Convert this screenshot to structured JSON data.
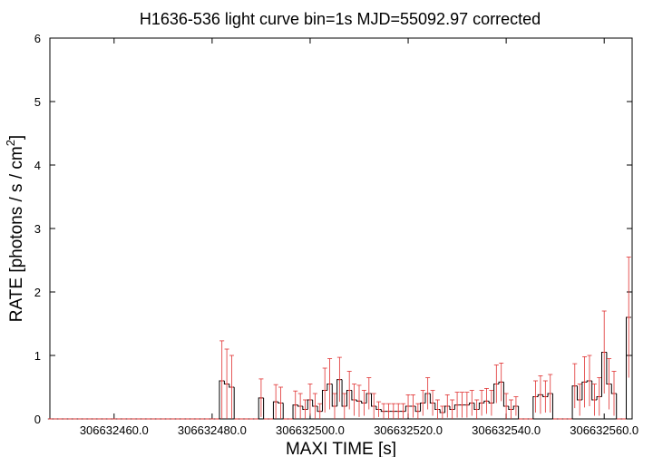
{
  "chart_data": {
    "type": "step-errorbar",
    "title": "H1636-536 light curve bin=1s MJD=55092.97 corrected",
    "x_label": "MAXI TIME [s]",
    "y_label": "RATE [photons / s / cm",
    "y_label_superscript": "2",
    "y_label_end": "]",
    "line_color": "#000000",
    "error_color": "#e03030",
    "xlim": [
      306632446.9,
      306632565.7
    ],
    "ylim": [
      0,
      6
    ],
    "xticks": [
      {
        "value": 306632460,
        "label": "306632460.0"
      },
      {
        "value": 306632480,
        "label": "306632480.0"
      },
      {
        "value": 306632500,
        "label": "306632500.0"
      },
      {
        "value": 306632520,
        "label": "306632520.0"
      },
      {
        "value": 306632540,
        "label": "306632540.0"
      },
      {
        "value": 306632560,
        "label": "306632560.0"
      }
    ],
    "yticks": [
      0,
      1,
      2,
      3,
      4,
      5,
      6
    ],
    "x": [
      306632447,
      306632448,
      306632449,
      306632450,
      306632451,
      306632452,
      306632453,
      306632454,
      306632455,
      306632456,
      306632457,
      306632458,
      306632459,
      306632460,
      306632461,
      306632462,
      306632463,
      306632464,
      306632465,
      306632466,
      306632467,
      306632468,
      306632469,
      306632470,
      306632471,
      306632472,
      306632473,
      306632474,
      306632475,
      306632476,
      306632477,
      306632478,
      306632479,
      306632480,
      306632481,
      306632482,
      306632483,
      306632484,
      306632485,
      306632486,
      306632487,
      306632488,
      306632489,
      306632490,
      306632491,
      306632492,
      306632493,
      306632494,
      306632495,
      306632496,
      306632497,
      306632498,
      306632499,
      306632500,
      306632501,
      306632502,
      306632503,
      306632504,
      306632505,
      306632506,
      306632507,
      306632508,
      306632509,
      306632510,
      306632511,
      306632512,
      306632513,
      306632514,
      306632515,
      306632516,
      306632517,
      306632518,
      306632519,
      306632520,
      306632521,
      306632522,
      306632523,
      306632524,
      306632525,
      306632526,
      306632527,
      306632528,
      306632529,
      306632530,
      306632531,
      306632532,
      306632533,
      306632534,
      306632535,
      306632536,
      306632537,
      306632538,
      306632539,
      306632540,
      306632541,
      306632542,
      306632543,
      306632544,
      306632545,
      306632546,
      306632547,
      306632548,
      306632549,
      306632550,
      306632551,
      306632552,
      306632553,
      306632554,
      306632555,
      306632556,
      306632557,
      306632558,
      306632559,
      306632560,
      306632561,
      306632562,
      306632563,
      306632564,
      306632565
    ],
    "values": [
      0,
      0,
      0,
      0,
      0,
      0,
      0,
      0,
      0,
      0,
      0,
      0,
      0,
      0,
      0,
      0,
      0,
      0,
      0,
      0,
      0,
      0,
      0,
      0,
      0,
      0,
      0,
      0,
      0,
      0,
      0,
      0,
      0,
      0,
      0,
      0.6,
      0.55,
      0.5,
      0,
      0,
      0,
      0,
      0,
      0.33,
      0,
      0,
      0.27,
      0.25,
      0,
      0,
      0.22,
      0.2,
      0.15,
      0.3,
      0.2,
      0.12,
      0.45,
      0.55,
      0.2,
      0.62,
      0.2,
      0.45,
      0.3,
      0.28,
      0.25,
      0.4,
      0.2,
      0.15,
      0.12,
      0.12,
      0.12,
      0.12,
      0.12,
      0.2,
      0.2,
      0.12,
      0.25,
      0.4,
      0.25,
      0.15,
      0.1,
      0.2,
      0.15,
      0.22,
      0.22,
      0.22,
      0.25,
      0.15,
      0.25,
      0.28,
      0.25,
      0.55,
      0.58,
      0.2,
      0.15,
      0.2,
      0,
      0,
      0,
      0.35,
      0.38,
      0.35,
      0.4,
      0,
      0,
      0,
      0,
      0.52,
      0.3,
      0.58,
      0.6,
      0.3,
      0.35,
      1.05,
      0.55,
      0.4,
      0,
      0,
      1.6
    ],
    "errors": [
      0,
      0,
      0,
      0,
      0,
      0,
      0,
      0,
      0,
      0,
      0,
      0,
      0,
      0,
      0,
      0,
      0,
      0,
      0,
      0,
      0,
      0,
      0,
      0,
      0,
      0,
      0,
      0,
      0,
      0,
      0,
      0,
      0,
      0,
      0,
      0.63,
      0.55,
      0.5,
      0,
      0,
      0,
      0,
      0,
      0.3,
      0,
      0,
      0.27,
      0.25,
      0,
      0,
      0.22,
      0.2,
      0.15,
      0.25,
      0.2,
      0.12,
      0.35,
      0.4,
      0.2,
      0.35,
      0.2,
      0.3,
      0.25,
      0.25,
      0.2,
      0.25,
      0.2,
      0.12,
      0.12,
      0.12,
      0.12,
      0.12,
      0.12,
      0.18,
      0.18,
      0.12,
      0.2,
      0.25,
      0.2,
      0.15,
      0.1,
      0.18,
      0.15,
      0.2,
      0.2,
      0.2,
      0.2,
      0.15,
      0.2,
      0.2,
      0.2,
      0.3,
      0.3,
      0.2,
      0.15,
      0.15,
      0,
      0,
      0,
      0.25,
      0.3,
      0.25,
      0.3,
      0,
      0,
      0,
      0,
      0.35,
      0.25,
      0.4,
      0.4,
      0.25,
      0.3,
      0.65,
      0.4,
      0.35,
      0,
      0,
      0.95
    ]
  }
}
